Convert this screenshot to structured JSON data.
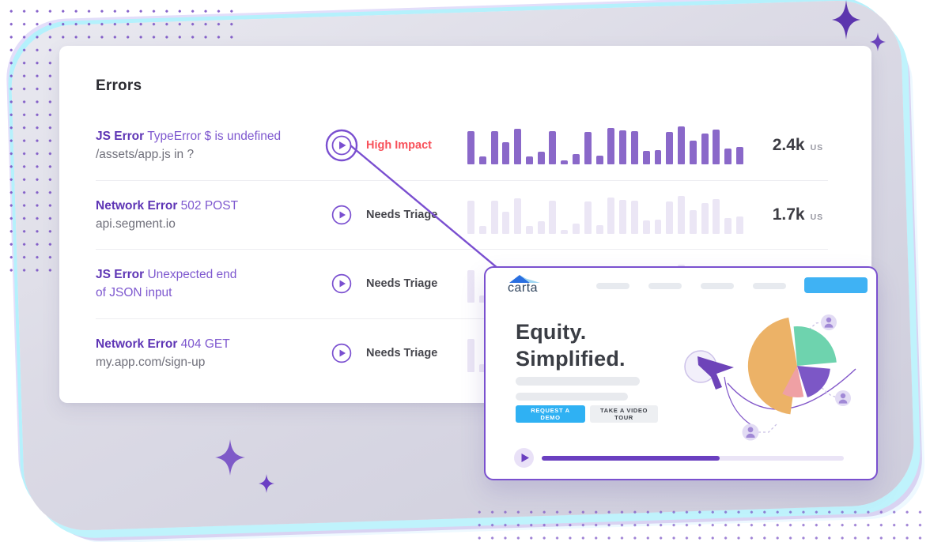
{
  "colors": {
    "accent_purple": "#7a4fd0",
    "bar_purple": "#8a68c9",
    "bar_lavender": "#ebe6f5",
    "status_red": "#f8515a",
    "status_dark": "#45454c",
    "error_type_purple": "#5e35b5",
    "error_message_purple": "#7e58cf",
    "muted_text": "#6f6f7a",
    "cta_blue": "#2fb1f3",
    "brand_navy": "#31455e",
    "card_border": "#7a50cf",
    "progress_purple": "#6a3fc0"
  },
  "icons": {
    "play": "play-icon",
    "cursor": "cursor-arrow-icon",
    "avatar": "user-avatar-icon",
    "sparkle": "sparkle-icon"
  },
  "errors_panel": {
    "title": "Errors",
    "rows": [
      {
        "type": "JS Error",
        "message": "TypeError $ is undefined",
        "detail": "/assets/app.js in ?",
        "detail_muted": true,
        "status": "High Impact",
        "status_level": "high",
        "play_emphasis": true,
        "count": "2.4k",
        "count_unit": "us",
        "bars": "purple"
      },
      {
        "type": "Network Error",
        "message": "502 POST",
        "detail": "api.segment.io",
        "detail_muted": true,
        "status": "Needs Triage",
        "status_level": "normal",
        "play_emphasis": false,
        "count": "1.7k",
        "count_unit": "us",
        "bars": "lavender"
      },
      {
        "type": "JS Error",
        "message": "Unexpected end",
        "detail": "of JSON input",
        "detail_muted": false,
        "status": "Needs Triage",
        "status_level": "normal",
        "play_emphasis": false,
        "count": "",
        "count_unit": "",
        "bars": "lavender"
      },
      {
        "type": "Network Error",
        "message": "404 GET",
        "detail": "my.app.com/sign-up",
        "detail_muted": true,
        "status": "Needs Triage",
        "status_level": "normal",
        "play_emphasis": false,
        "count": "",
        "count_unit": "",
        "bars": "lavender"
      }
    ]
  },
  "chart_data": {
    "type": "bar",
    "title": "Error occurrence sparklines (one per error row, ~24 time buckets, unlabeled axes)",
    "values": [
      86,
      20,
      86,
      58,
      94,
      20,
      32,
      88,
      10,
      26,
      84,
      22,
      96,
      90,
      86,
      34,
      38,
      84,
      100,
      62,
      80,
      92,
      42,
      46
    ],
    "ylim": [
      0,
      100
    ],
    "grid": false,
    "series": [
      {
        "name": "JS Error TypeError $ is undefined",
        "count_label": "2.4k",
        "unit": "us",
        "bar_color": "#8a68c9"
      },
      {
        "name": "Network Error 502 POST",
        "count_label": "1.7k",
        "unit": "us",
        "bar_color": "#ebe6f5"
      },
      {
        "name": "JS Error Unexpected end of JSON input (partially hidden)",
        "count_label": "",
        "unit": "",
        "bar_color": "#ebe6f5"
      },
      {
        "name": "Network Error 404 GET (partially hidden)",
        "count_label": "",
        "unit": "",
        "bar_color": "#ebe6f5"
      }
    ]
  },
  "replay_card": {
    "brand": "carta",
    "headline_line1": "Equity.",
    "headline_line2": "Simplified.",
    "cta_primary": "REQUEST A DEMO",
    "cta_secondary": "TAKE A VIDEO TOUR",
    "nav_placeholder_count": 4,
    "progress_percent": 59,
    "pie": {
      "slices": [
        {
          "name": "orange",
          "color": "#ecb267"
        },
        {
          "name": "teal",
          "color": "#6ed3ae"
        },
        {
          "name": "purple",
          "color": "#7c57c6"
        },
        {
          "name": "pink",
          "color": "#efa0a4"
        }
      ]
    }
  }
}
